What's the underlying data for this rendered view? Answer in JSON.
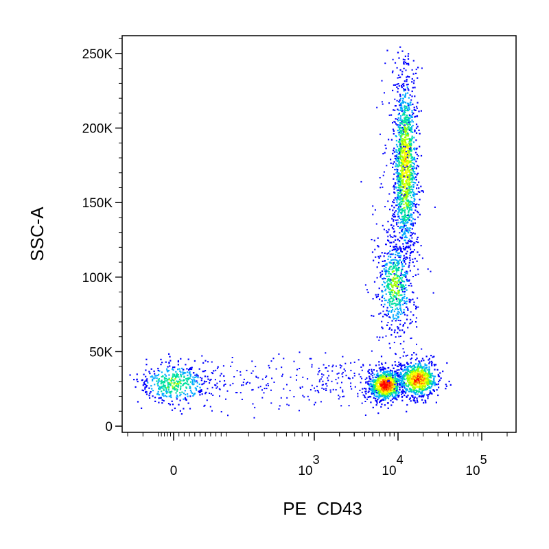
{
  "chart_data": {
    "type": "scatter",
    "subtype": "flow-cytometry-density-dot-plot",
    "xlabel": "PE  CD43",
    "ylabel": "SSC-A",
    "x_scale": "biexponential",
    "y_scale": "linear",
    "xlim": [
      -300,
      200000
    ],
    "ylim": [
      -5000,
      262144
    ],
    "x_ticks": [
      {
        "value": 0,
        "label": "0",
        "exponent": ""
      },
      {
        "value": 1000,
        "label": "10",
        "exponent": "3"
      },
      {
        "value": 10000,
        "label": "10",
        "exponent": "4"
      },
      {
        "value": 100000,
        "label": "10",
        "exponent": "5"
      }
    ],
    "y_ticks": [
      {
        "value": 0,
        "label": "0"
      },
      {
        "value": 50000,
        "label": "50K"
      },
      {
        "value": 100000,
        "label": "100K"
      },
      {
        "value": 150000,
        "label": "150K"
      },
      {
        "value": 200000,
        "label": "200K"
      },
      {
        "value": 250000,
        "label": "250K"
      }
    ],
    "grid": false,
    "legend": "none",
    "density_colors": [
      "#0000ff",
      "#00aaff",
      "#00e0a0",
      "#a0ff00",
      "#ffff00",
      "#ff8000",
      "#ff0000"
    ],
    "populations": [
      {
        "x_center": 0,
        "y_center": 29000,
        "x_spread_decades": 0.25,
        "y_spread": 7000,
        "count": 420,
        "peak_density": 0.45
      },
      {
        "x_center": 7000,
        "y_center": 28000,
        "x_spread_decades": 0.1,
        "y_spread": 5000,
        "count": 900,
        "peak_density": 1.0
      },
      {
        "x_center": 17000,
        "y_center": 32000,
        "x_spread_decades": 0.12,
        "y_spread": 6000,
        "count": 800,
        "peak_density": 0.85
      },
      {
        "x_center": 12000,
        "y_center": 175000,
        "x_spread_decades": 0.07,
        "y_spread": 30000,
        "count": 1300,
        "peak_density": 0.65
      },
      {
        "x_center": 9000,
        "y_center": 95000,
        "x_spread_decades": 0.1,
        "y_spread": 15000,
        "count": 500,
        "peak_density": 0.5
      }
    ]
  }
}
